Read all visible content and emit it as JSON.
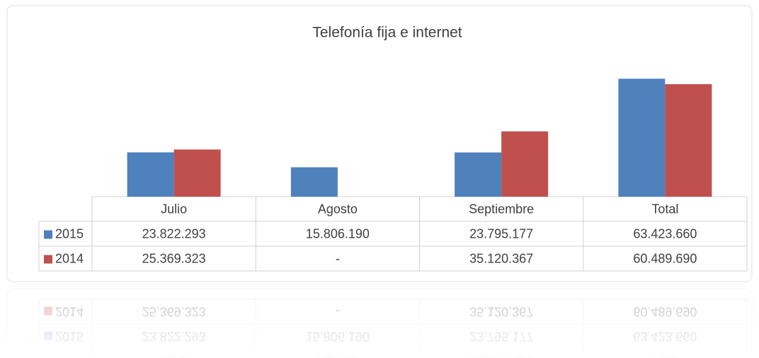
{
  "chart_data": {
    "type": "bar",
    "title": "Telefonía fija e internet",
    "categories": [
      "Julio",
      "Agosto",
      "Septiembre",
      "Total"
    ],
    "series": [
      {
        "name": "2015",
        "color": "#4f81bd",
        "values": [
          23822293,
          15806190,
          23795177,
          63423660
        ],
        "value_labels": [
          "23.822.293",
          "15.806.190",
          "23.795.177",
          "63.423.660"
        ]
      },
      {
        "name": "2014",
        "color": "#c0504d",
        "values": [
          25369323,
          null,
          35120367,
          60489690
        ],
        "value_labels": [
          "25.369.323",
          "-",
          "35.120.367",
          "60.489.690"
        ]
      }
    ],
    "ylim": [
      0,
      70000000
    ]
  }
}
